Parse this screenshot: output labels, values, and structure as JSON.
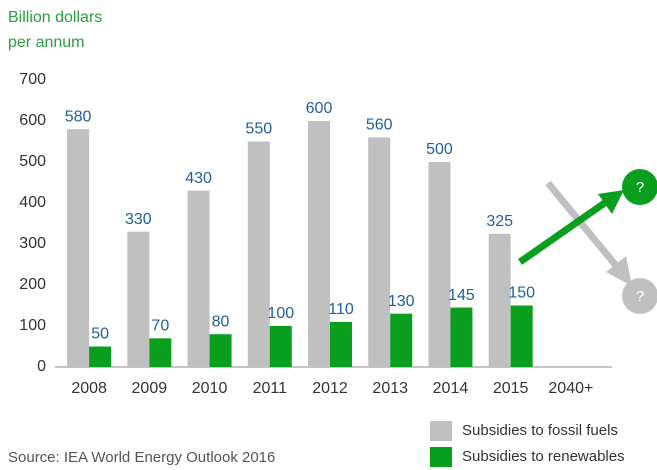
{
  "chart_data": {
    "type": "bar",
    "title": [
      "Billion dollars",
      "per annum"
    ],
    "source": "Source: IEA World Energy Outlook 2016",
    "categories": [
      "2008",
      "2009",
      "2010",
      "2011",
      "2012",
      "2013",
      "2014",
      "2015",
      "2040+"
    ],
    "series": [
      {
        "name": "Subsidies to fossil fuels",
        "color": "#c0c0c0",
        "values": [
          580,
          330,
          430,
          550,
          600,
          560,
          500,
          325,
          null
        ]
      },
      {
        "name": "Subsidies to renewables",
        "color": "#0a9e1e",
        "values": [
          50,
          70,
          80,
          100,
          110,
          130,
          145,
          150,
          null
        ]
      }
    ],
    "annotations": [
      "?",
      "?"
    ],
    "ylim": [
      0,
      700
    ],
    "yticks": [
      0,
      100,
      200,
      300,
      400,
      500,
      600,
      700
    ],
    "grid": false
  }
}
